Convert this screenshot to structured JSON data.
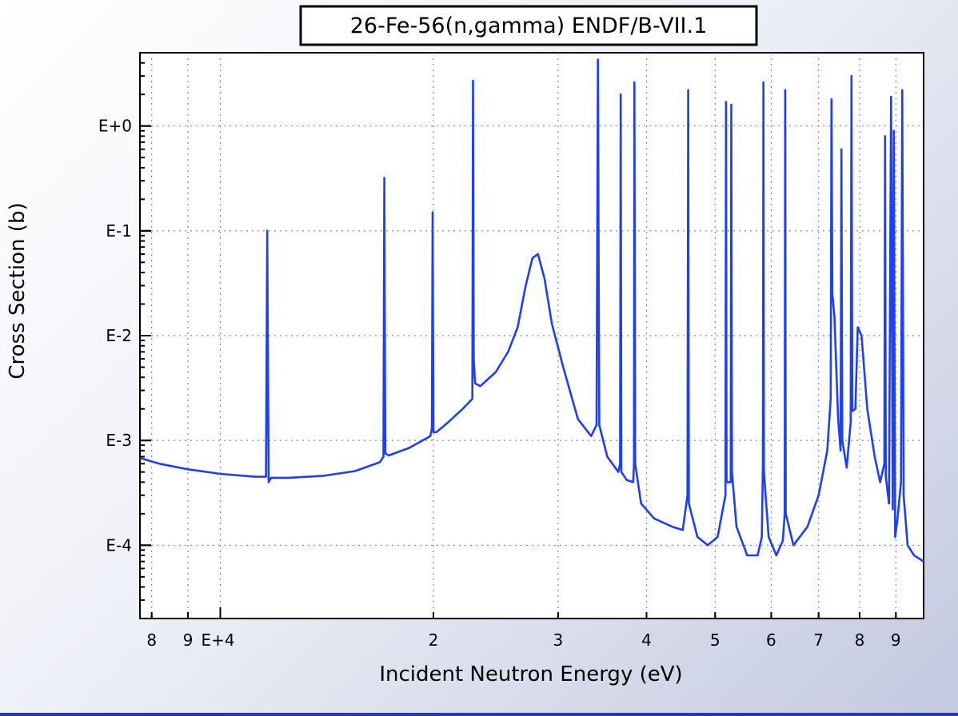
{
  "chart_data": {
    "type": "line",
    "title": "26-Fe-56(n,gamma) ENDF/B-VII.1",
    "xlabel": "Incident Neutron Energy (eV)",
    "ylabel": "Cross Section (b)",
    "x_scale": "log",
    "y_scale": "log",
    "xlim": [
      7700,
      98500
    ],
    "ylim": [
      2e-05,
      5.0
    ],
    "grid": true,
    "x_tick_labels": [
      {
        "value": 8000,
        "label": "8"
      },
      {
        "value": 9000,
        "label": "9"
      },
      {
        "value": 10000,
        "label": "E+4"
      },
      {
        "value": 20000,
        "label": "2"
      },
      {
        "value": 30000,
        "label": "3"
      },
      {
        "value": 40000,
        "label": "4"
      },
      {
        "value": 50000,
        "label": "5"
      },
      {
        "value": 60000,
        "label": "6"
      },
      {
        "value": 70000,
        "label": "7"
      },
      {
        "value": 80000,
        "label": "8"
      },
      {
        "value": 90000,
        "label": "9"
      }
    ],
    "y_tick_labels": [
      {
        "value": 1,
        "label": "E+0"
      },
      {
        "value": 0.1,
        "label": "E-1"
      },
      {
        "value": 0.01,
        "label": "E-2"
      },
      {
        "value": 0.001,
        "label": "E-3"
      },
      {
        "value": 0.0001,
        "label": "E-4"
      }
    ],
    "series": [
      {
        "color": "#1f3ff0",
        "points": [
          [
            7700,
            0.00068
          ],
          [
            8200,
            0.0006
          ],
          [
            9000,
            0.00053
          ],
          [
            10000,
            0.00048
          ],
          [
            11200,
            0.00045
          ],
          [
            11600,
            0.00045
          ],
          [
            11650,
            0.1
          ],
          [
            11700,
            0.0004
          ],
          [
            11800,
            0.00044
          ],
          [
            12500,
            0.00044
          ],
          [
            14000,
            0.00046
          ],
          [
            15500,
            0.00051
          ],
          [
            16800,
            0.00062
          ],
          [
            17000,
            0.0007
          ],
          [
            17050,
            0.32
          ],
          [
            17100,
            0.00075
          ],
          [
            17300,
            0.00072
          ],
          [
            18500,
            0.00085
          ],
          [
            19800,
            0.0011
          ],
          [
            19900,
            0.0013
          ],
          [
            19950,
            0.15
          ],
          [
            20000,
            0.0012
          ],
          [
            20200,
            0.0012
          ],
          [
            21000,
            0.0015
          ],
          [
            22000,
            0.002
          ],
          [
            22700,
            0.0025
          ],
          [
            22750,
            2.7
          ],
          [
            22800,
            0.006
          ],
          [
            22900,
            0.0035
          ],
          [
            23300,
            0.0033
          ],
          [
            24500,
            0.0045
          ],
          [
            25500,
            0.007
          ],
          [
            26300,
            0.012
          ],
          [
            27000,
            0.03
          ],
          [
            27600,
            0.055
          ],
          [
            28100,
            0.06
          ],
          [
            28700,
            0.035
          ],
          [
            29400,
            0.013
          ],
          [
            30500,
            0.005
          ],
          [
            32000,
            0.0016
          ],
          [
            33400,
            0.0011
          ],
          [
            34000,
            0.0014
          ],
          [
            34150,
            4.3
          ],
          [
            34300,
            0.0014
          ],
          [
            35200,
            0.0007
          ],
          [
            36500,
            0.0005
          ],
          [
            36700,
            0.0006
          ],
          [
            36780,
            2.0
          ],
          [
            36850,
            0.0005
          ],
          [
            37500,
            0.00042
          ],
          [
            38300,
            0.0004
          ],
          [
            38400,
            0.0006
          ],
          [
            38450,
            2.6
          ],
          [
            38550,
            0.0006
          ],
          [
            39300,
            0.00025
          ],
          [
            41000,
            0.00018
          ],
          [
            43500,
            0.00015
          ],
          [
            45000,
            0.00014
          ],
          [
            45700,
            0.0003
          ],
          [
            45800,
            2.2
          ],
          [
            45900,
            0.00025
          ],
          [
            47200,
            0.00012
          ],
          [
            48800,
            0.0001
          ],
          [
            50400,
            0.00012
          ],
          [
            51700,
            0.0003
          ],
          [
            51800,
            1.7
          ],
          [
            51900,
            0.0004
          ],
          [
            52600,
            0.0004
          ],
          [
            52700,
            1.6
          ],
          [
            52800,
            0.0005
          ],
          [
            53600,
            0.00015
          ],
          [
            55500,
            8e-05
          ],
          [
            57400,
            8e-05
          ],
          [
            58200,
            0.00012
          ],
          [
            58400,
            0.0006
          ],
          [
            58500,
            2.6
          ],
          [
            58600,
            0.0005
          ],
          [
            59500,
            0.00012
          ],
          [
            61000,
            8e-05
          ],
          [
            62300,
            0.00011
          ],
          [
            62700,
            0.0002
          ],
          [
            62800,
            2.2
          ],
          [
            62900,
            0.0002
          ],
          [
            64500,
            0.0001
          ],
          [
            67500,
            0.00015
          ],
          [
            70000,
            0.0003
          ],
          [
            72000,
            0.0008
          ],
          [
            72800,
            0.0025
          ],
          [
            73000,
            1.8
          ],
          [
            73200,
            0.025
          ],
          [
            73700,
            0.015
          ],
          [
            74600,
            0.0016
          ],
          [
            75200,
            0.0008
          ],
          [
            75400,
            0.6
          ],
          [
            75600,
            0.001
          ],
          [
            76700,
            0.00055
          ],
          [
            77700,
            0.0015
          ],
          [
            77900,
            3.0
          ],
          [
            78100,
            0.0019
          ],
          [
            78900,
            0.002
          ],
          [
            79500,
            0.012
          ],
          [
            80500,
            0.01
          ],
          [
            82000,
            0.002
          ],
          [
            84000,
            0.0007
          ],
          [
            85500,
            0.0004
          ],
          [
            86700,
            0.0006
          ],
          [
            86900,
            0.8
          ],
          [
            87100,
            0.00045
          ],
          [
            88000,
            0.00025
          ],
          [
            88600,
            1.9
          ],
          [
            89100,
            0.00022
          ],
          [
            89400,
            0.9
          ],
          [
            89800,
            0.00012
          ],
          [
            90500,
            0.00018
          ],
          [
            91500,
            0.0004
          ],
          [
            91900,
            2.2
          ],
          [
            92300,
            0.0003
          ],
          [
            93500,
            0.0001
          ],
          [
            95500,
            8e-05
          ],
          [
            98500,
            7e-05
          ]
        ]
      }
    ]
  }
}
